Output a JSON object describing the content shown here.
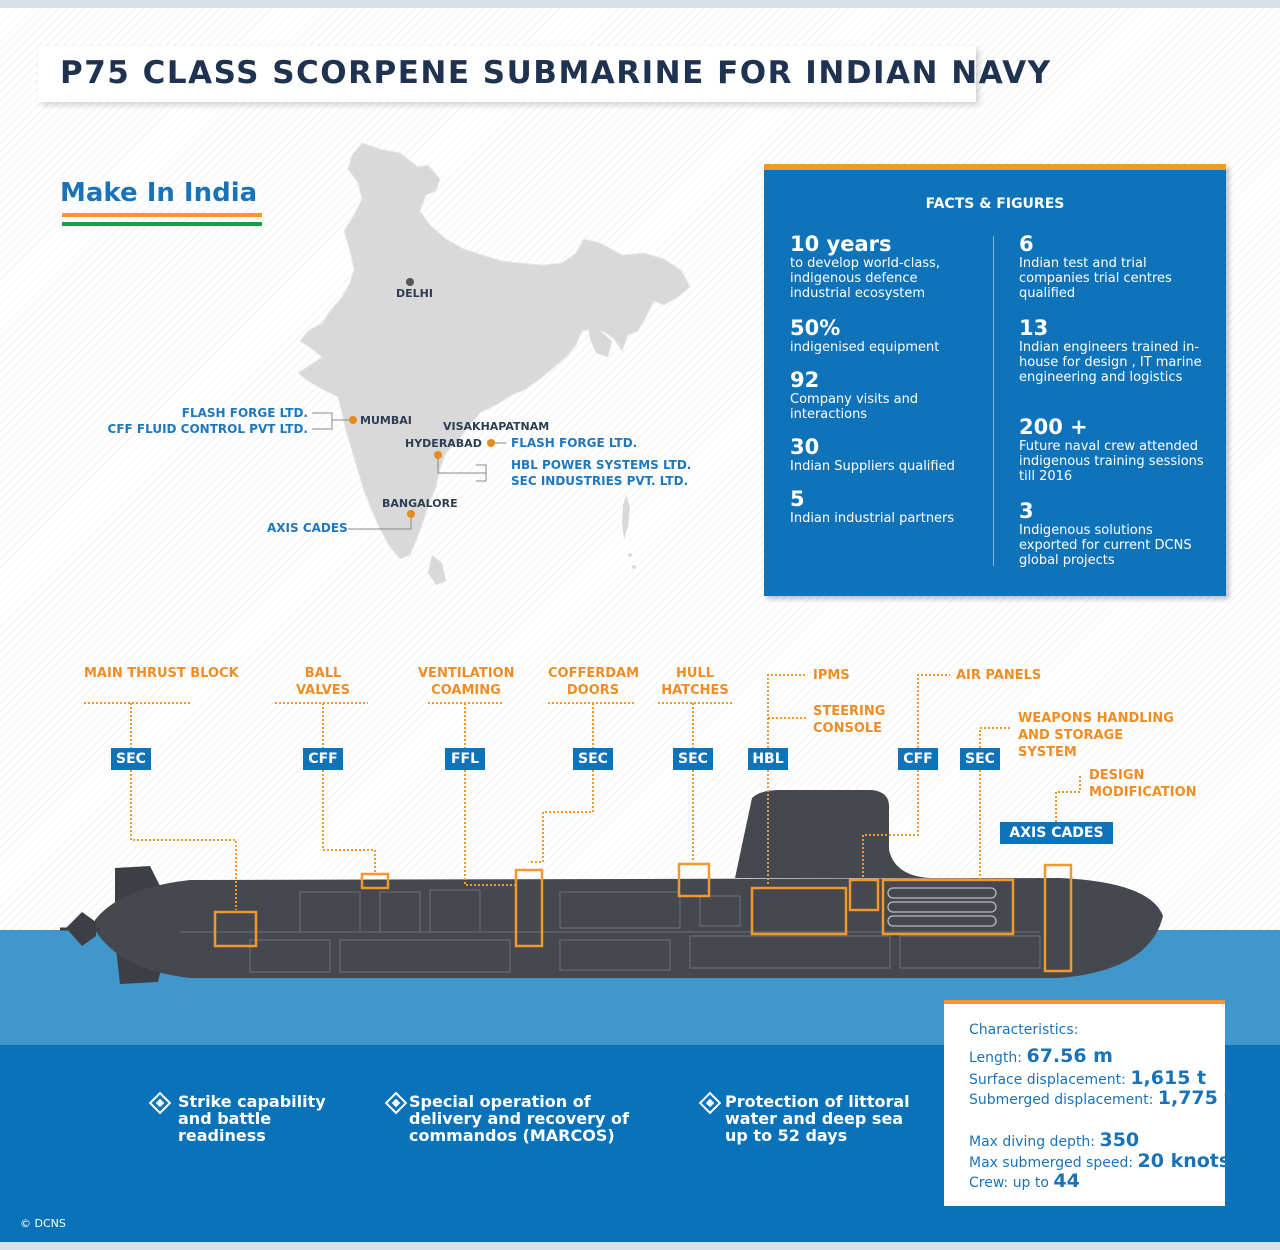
{
  "title": "P75 CLASS SCORPENE SUBMARINE FOR INDIAN NAVY",
  "make_in_india": "Make In India",
  "colors": {
    "accent_orange": "#f2982d",
    "accent_blue": "#0f73ba",
    "title_navy": "#1f3350",
    "flag_green": "#1f9a45"
  },
  "map": {
    "cities": {
      "delhi": "DELHI",
      "mumbai": "MUMBAI",
      "visakhapatnam": "VISAKHAPATNAM",
      "hyderabad": "HYDERABAD",
      "bangalore": "BANGALORE"
    },
    "companies": {
      "mumbai_1": "FLASH FORGE LTD.",
      "mumbai_2": "CFF FLUID CONTROL PVT LTD.",
      "vizag": "FLASH FORGE LTD.",
      "hyderabad_1": "HBL POWER SYSTEMS LTD.",
      "hyderabad_2": "SEC INDUSTRIES PVT. LTD.",
      "bangalore": "AXIS CADES"
    }
  },
  "facts": {
    "heading": "FACTS & FIGURES",
    "left": [
      {
        "num": "10 years",
        "desc": "to develop world-class, indigenous defence industrial ecosystem"
      },
      {
        "num": "50%",
        "desc": "indigenised equipment"
      },
      {
        "num": "92",
        "desc": "Company visits and interactions"
      },
      {
        "num": "30",
        "desc": "Indian Suppliers qualified"
      },
      {
        "num": "5",
        "desc": "Indian industrial partners"
      }
    ],
    "right": [
      {
        "num": "6",
        "desc": "Indian test and trial companies trial centres qualified"
      },
      {
        "num": "13",
        "desc": "Indian engineers trained in-house for design , IT marine engineering and logistics"
      },
      {
        "num": "200 +",
        "desc": "Future naval crew attended indigenous training sessions till 2016"
      },
      {
        "num": "3",
        "desc": "Indigenous solutions exported for current DCNS global projects"
      }
    ]
  },
  "sub_labels": {
    "main_thrust": "MAIN THRUST BLOCK",
    "ball_valves": "BALL VALVES",
    "ventilation": "VENTILATION COAMING",
    "cofferdam": "COFFERDAM DOORS",
    "hull_hatches": "HULL HATCHES",
    "ipms": "IPMS",
    "steering": "STEERING CONSOLE",
    "air_panels": "AIR PANELS",
    "weapons": "WEAPONS HANDLING AND STORAGE SYSTEM",
    "design_mod": "DESIGN MODIFICATION"
  },
  "sub_tags": {
    "t1": "SEC",
    "t2": "CFF",
    "t3": "FFL",
    "t4": "SEC",
    "t5": "SEC",
    "t6": "HBL",
    "t7": "CFF",
    "t8": "SEC",
    "t9": "AXIS CADES"
  },
  "bullets": [
    "Strike capability and battle readiness",
    "Special operation of delivery and recovery of commandos (MARCOS)",
    "Protection of littoral water and deep sea up to 52 days"
  ],
  "characteristics": {
    "heading": "Characteristics:",
    "length_label": "Length:",
    "length_value": "67.56 m",
    "surface_label": "Surface displacement:",
    "surface_value": "1,615 t",
    "submerged_label": "Submerged displacement:",
    "submerged_value": "1,775 t",
    "depth_label": "Max diving depth:",
    "depth_value": "350",
    "speed_label": "Max submerged speed:",
    "speed_value": "20 knots",
    "crew_label": "Crew: up to",
    "crew_value": "44"
  },
  "copyright": "© DCNS"
}
